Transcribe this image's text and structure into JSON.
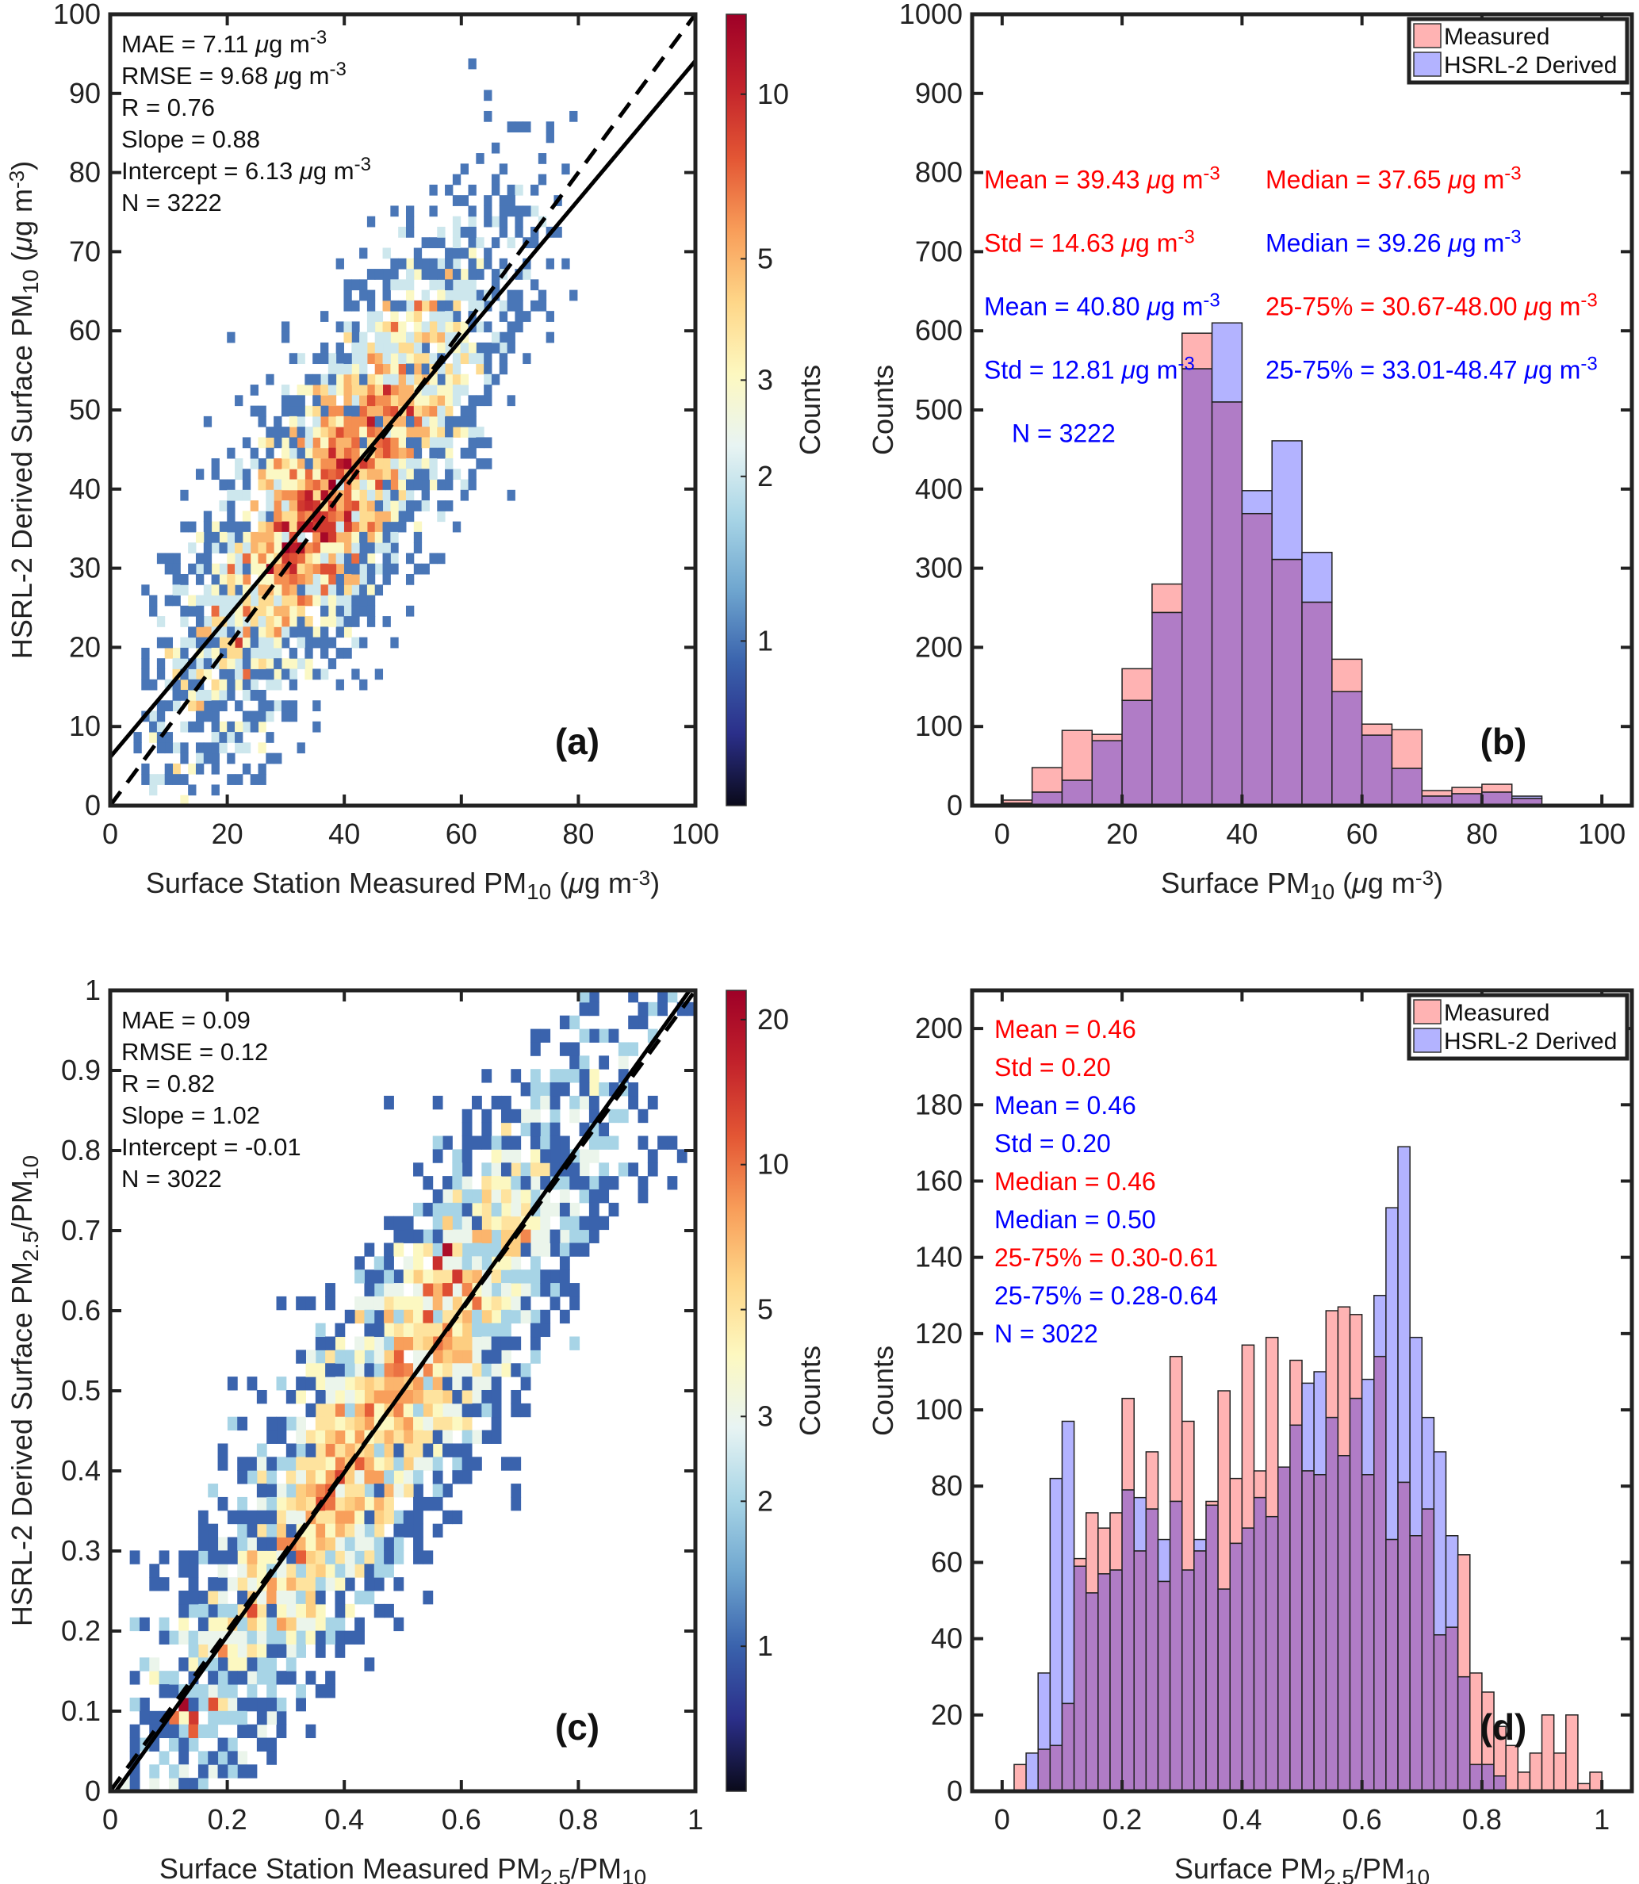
{
  "figure": {
    "panels": [
      "a",
      "b",
      "c",
      "d"
    ]
  },
  "chart_data": [
    {
      "id": "a",
      "type": "heatmap",
      "panel_letter": "(a)",
      "xlabel": {
        "main": "Surface Station Measured PM",
        "sub": "10",
        "unit_pre": " (",
        "mu": "μ",
        "unit": "g m",
        "sup": "-3",
        "close": ")"
      },
      "ylabel": {
        "main": "HSRL-2 Derived Surface PM",
        "sub": "10",
        "unit_pre": " (",
        "mu": "μ",
        "unit": "g m",
        "sup": "-3",
        "close": ")"
      },
      "xlim": [
        0,
        100
      ],
      "ylim": [
        0,
        100
      ],
      "xticks": [
        0,
        20,
        40,
        60,
        80,
        100
      ],
      "yticks": [
        0,
        10,
        20,
        30,
        40,
        50,
        60,
        70,
        80,
        90,
        100
      ],
      "xtick_labels": [
        "0",
        "20",
        "40",
        "60",
        "80",
        "100"
      ],
      "ytick_labels": [
        "0",
        "10",
        "20",
        "30",
        "40",
        "50",
        "60",
        "70",
        "80",
        "90",
        "100"
      ],
      "bin_width": 1.33,
      "stats": [
        {
          "label": "MAE = 7.11 ",
          "mu": "μ",
          "unit": "g m",
          "sup": "-3"
        },
        {
          "label": "RMSE = 9.68 ",
          "mu": "μ",
          "unit": "g m",
          "sup": "-3"
        },
        {
          "label": "R = 0.76"
        },
        {
          "label": "Slope = 0.88"
        },
        {
          "label": "Intercept = 6.13 ",
          "mu": "μ",
          "unit": "g m",
          "sup": "-3"
        },
        {
          "label": "N = 3222"
        }
      ],
      "fit_line": {
        "slope": 0.88,
        "intercept": 6.13,
        "style": "solid"
      },
      "one_to_one_line": {
        "slope": 1,
        "intercept": 0,
        "style": "dashed"
      },
      "distribution": {
        "n": 3222,
        "x_center": 38,
        "x_spread": 14.5,
        "slope": 0.88,
        "intercept": 6.13,
        "residual_spread": 9.5,
        "x_min": 5,
        "x_max": 80
      },
      "colorbar": {
        "label": "Counts",
        "scale": "log",
        "range": [
          0.5,
          14
        ],
        "ticks": [
          1,
          2,
          3,
          5,
          10
        ],
        "tick_labels": [
          "1",
          "2",
          "3",
          "5",
          "10"
        ],
        "colormap": [
          "#0a0a1a",
          "#2b2f8a",
          "#3a63ad",
          "#6fa6cf",
          "#a8d5e6",
          "#e8f4f3",
          "#fdf8c0",
          "#fed688",
          "#f89d59",
          "#e35634",
          "#c2222b",
          "#9e0027"
        ]
      },
      "dense_cells": [
        {
          "x": 33,
          "y": 33,
          "count": 12
        },
        {
          "x": 34.5,
          "y": 35,
          "count": 11
        },
        {
          "x": 36,
          "y": 33.5,
          "count": 13
        },
        {
          "x": 32,
          "y": 35.5,
          "count": 10
        },
        {
          "x": 37,
          "y": 36,
          "count": 9
        },
        {
          "x": 35,
          "y": 37.5,
          "count": 9
        },
        {
          "x": 38,
          "y": 34,
          "count": 8
        },
        {
          "x": 31,
          "y": 34,
          "count": 8
        },
        {
          "x": 34,
          "y": 39,
          "count": 7
        },
        {
          "x": 40,
          "y": 38,
          "count": 7
        },
        {
          "x": 45,
          "y": 48,
          "count": 8
        },
        {
          "x": 47,
          "y": 50,
          "count": 7
        },
        {
          "x": 42,
          "y": 44,
          "count": 6
        },
        {
          "x": 49,
          "y": 46,
          "count": 6
        },
        {
          "x": 30,
          "y": 31,
          "count": 7
        },
        {
          "x": 36,
          "y": 30.5,
          "count": 8
        }
      ]
    },
    {
      "id": "b",
      "type": "bar",
      "panel_letter": "(b)",
      "xlabel": {
        "main": "Surface PM",
        "sub": "10",
        "unit_pre": " (",
        "mu": "μ",
        "unit": "g m",
        "sup": "-3",
        "close": ")"
      },
      "ylabel": "Counts",
      "xlim": [
        -5,
        105
      ],
      "ylim": [
        0,
        1000
      ],
      "xticks": [
        0,
        20,
        40,
        60,
        80,
        100
      ],
      "yticks": [
        0,
        100,
        200,
        300,
        400,
        500,
        600,
        700,
        800,
        900,
        1000
      ],
      "xtick_labels": [
        "0",
        "20",
        "40",
        "60",
        "80",
        "100"
      ],
      "ytick_labels": [
        "0",
        "100",
        "200",
        "300",
        "400",
        "500",
        "600",
        "700",
        "800",
        "900",
        "1000"
      ],
      "bin_edges_start": 0,
      "bin_width": 5,
      "series": [
        {
          "name": "Measured",
          "color": "#ff7f7f",
          "values": [
            7,
            48,
            95,
            90,
            173,
            280,
            597,
            510,
            369,
            311,
            257,
            185,
            103,
            96,
            19,
            23,
            27,
            9,
            1
          ]
        },
        {
          "name": "HSRL-2 Derived",
          "color": "#7f7fff",
          "values": [
            3,
            17,
            32,
            82,
            133,
            244,
            552,
            610,
            398,
            461,
            320,
            144,
            89,
            47,
            12,
            15,
            17,
            12,
            0
          ]
        }
      ],
      "overlap_color": "#b07cc6",
      "legend": {
        "position": "top-right",
        "entries": [
          "Measured",
          "HSRL-2 Derived"
        ]
      },
      "annotations": [
        {
          "text": "Mean = 39.43 ",
          "mu": "μ",
          "unit": "g m",
          "sup": "-3",
          "color": "#ff0000",
          "col": 0,
          "row": 0
        },
        {
          "text": "Std = 14.63 ",
          "mu": "μ",
          "unit": "g m",
          "sup": "-3",
          "color": "#ff0000",
          "col": 0,
          "row": 1
        },
        {
          "text": "Mean = 40.80 ",
          "mu": "μ",
          "unit": "g m",
          "sup": "-3",
          "color": "#0000ff",
          "col": 0,
          "row": 2
        },
        {
          "text": "Std = 12.81 ",
          "mu": "μ",
          "unit": "g m",
          "sup": "-3",
          "color": "#0000ff",
          "col": 0,
          "row": 3
        },
        {
          "text": "N = 3222",
          "color": "#0000ff",
          "col": 0,
          "row": 4
        },
        {
          "text": "Median = 37.65 ",
          "mu": "μ",
          "unit": "g m",
          "sup": "-3",
          "color": "#ff0000",
          "col": 1,
          "row": 0
        },
        {
          "text": "Median = 39.26 ",
          "mu": "μ",
          "unit": "g m",
          "sup": "-3",
          "color": "#0000ff",
          "col": 1,
          "row": 1
        },
        {
          "text": "25-75% = 30.67-48.00 ",
          "mu": "μ",
          "unit": "g m",
          "sup": "-3",
          "color": "#ff0000",
          "col": 1,
          "row": 2
        },
        {
          "text": "25-75% = 33.01-48.47 ",
          "mu": "μ",
          "unit": "g m",
          "sup": "-3",
          "color": "#0000ff",
          "col": 1,
          "row": 3
        }
      ]
    },
    {
      "id": "c",
      "type": "heatmap",
      "panel_letter": "(c)",
      "xlabel": {
        "main": "Surface Station Measured PM",
        "sub": "2.5",
        "mid": "/PM",
        "sub2": "10"
      },
      "ylabel": {
        "main": "HSRL-2 Derived Surface PM",
        "sub": "2.5",
        "mid": "/PM",
        "sub2": "10"
      },
      "xlim": [
        0,
        1
      ],
      "ylim": [
        0,
        1
      ],
      "xticks": [
        0,
        0.2,
        0.4,
        0.6,
        0.8,
        1
      ],
      "yticks": [
        0,
        0.1,
        0.2,
        0.3,
        0.4,
        0.5,
        0.6,
        0.7,
        0.8,
        0.9,
        1
      ],
      "xtick_labels": [
        "0",
        "0.2",
        "0.4",
        "0.6",
        "0.8",
        "1"
      ],
      "ytick_labels": [
        "0",
        "0.1",
        "0.2",
        "0.3",
        "0.4",
        "0.5",
        "0.6",
        "0.7",
        "0.8",
        "0.9",
        "1"
      ],
      "bin_width": 0.0167,
      "stats": [
        {
          "label": "MAE = 0.09"
        },
        {
          "label": "RMSE = 0.12"
        },
        {
          "label": "R = 0.82"
        },
        {
          "label": "Slope = 1.02"
        },
        {
          "label": "Intercept = -0.01"
        },
        {
          "label": "N = 3022"
        }
      ],
      "fit_line": {
        "slope": 1.02,
        "intercept": -0.01,
        "style": "solid"
      },
      "one_to_one_line": {
        "slope": 1,
        "intercept": 0,
        "style": "dashed"
      },
      "distribution": {
        "n": 3022,
        "x_center": 0.46,
        "x_spread": 0.2,
        "slope": 1.02,
        "intercept": -0.01,
        "residual_spread": 0.1,
        "x_min": 0.02,
        "x_max": 1.0
      },
      "colorbar": {
        "label": "Counts",
        "scale": "log",
        "range": [
          0.5,
          23
        ],
        "ticks": [
          1,
          2,
          3,
          5,
          10,
          20
        ],
        "tick_labels": [
          "1",
          "2",
          "3",
          "5",
          "10",
          "20"
        ],
        "colormap": [
          "#0a0a1a",
          "#2b2f8a",
          "#3a63ad",
          "#6fa6cf",
          "#a8d5e6",
          "#e8f4f3",
          "#fdf8c0",
          "#fed688",
          "#f89d59",
          "#e35634",
          "#c2222b",
          "#9e0027"
        ]
      },
      "dense_cells": [
        {
          "x": 0.13,
          "y": 0.11,
          "count": 21
        },
        {
          "x": 0.15,
          "y": 0.1,
          "count": 14
        },
        {
          "x": 0.17,
          "y": 0.11,
          "count": 12
        },
        {
          "x": 0.11,
          "y": 0.09,
          "count": 10
        },
        {
          "x": 0.15,
          "y": 0.08,
          "count": 11
        },
        {
          "x": 0.58,
          "y": 0.67,
          "count": 20
        },
        {
          "x": 0.56,
          "y": 0.66,
          "count": 15
        },
        {
          "x": 0.6,
          "y": 0.65,
          "count": 14
        },
        {
          "x": 0.58,
          "y": 0.63,
          "count": 12
        },
        {
          "x": 0.54,
          "y": 0.62,
          "count": 11
        },
        {
          "x": 0.62,
          "y": 0.61,
          "count": 10
        },
        {
          "x": 0.44,
          "y": 0.48,
          "count": 11
        },
        {
          "x": 0.36,
          "y": 0.36,
          "count": 12
        },
        {
          "x": 0.33,
          "y": 0.3,
          "count": 11
        },
        {
          "x": 0.25,
          "y": 0.22,
          "count": 12
        },
        {
          "x": 0.49,
          "y": 0.52,
          "count": 10
        },
        {
          "x": 0.71,
          "y": 0.69,
          "count": 9
        },
        {
          "x": 0.4,
          "y": 0.45,
          "count": 8
        },
        {
          "x": 0.3,
          "y": 0.31,
          "count": 9
        },
        {
          "x": 0.27,
          "y": 0.26,
          "count": 8
        }
      ]
    },
    {
      "id": "d",
      "type": "bar",
      "panel_letter": "(d)",
      "xlabel": {
        "main": "Surface PM",
        "sub": "2.5",
        "mid": "/PM",
        "sub2": "10"
      },
      "ylabel": "Counts",
      "xlim": [
        -0.05,
        1.05
      ],
      "ylim": [
        0,
        210
      ],
      "xticks": [
        0,
        0.2,
        0.4,
        0.6,
        0.8,
        1
      ],
      "yticks": [
        0,
        20,
        40,
        60,
        80,
        100,
        120,
        140,
        160,
        180,
        200
      ],
      "xtick_labels": [
        "0",
        "0.2",
        "0.4",
        "0.6",
        "0.8",
        "1"
      ],
      "ytick_labels": [
        "0",
        "20",
        "40",
        "60",
        "80",
        "100",
        "120",
        "140",
        "160",
        "180",
        "200"
      ],
      "bin_edges_start": 0.02,
      "bin_width": 0.02,
      "series": [
        {
          "name": "Measured",
          "color": "#ff7f7f",
          "values": [
            7,
            0,
            11,
            12,
            23,
            61,
            73,
            69,
            73,
            103,
            63,
            89,
            55,
            114,
            97,
            63,
            76,
            105,
            82,
            117,
            84,
            119,
            85,
            113,
            84,
            83,
            126,
            127,
            125,
            83,
            114,
            66,
            81,
            67,
            74,
            41,
            43,
            62,
            31,
            26,
            17,
            12,
            5,
            10,
            20,
            10,
            20,
            2,
            5
          ]
        },
        {
          "name": "HSRL-2 Derived",
          "color": "#7f7fff",
          "values": [
            0,
            10,
            31,
            82,
            97,
            59,
            52,
            57,
            58,
            79,
            77,
            74,
            66,
            76,
            58,
            66,
            75,
            53,
            65,
            69,
            77,
            72,
            85,
            96,
            107,
            110,
            98,
            88,
            103,
            108,
            130,
            153,
            169,
            119,
            98,
            89,
            67,
            30,
            7,
            7,
            4,
            0,
            0,
            0,
            0,
            0,
            0,
            0,
            0
          ]
        }
      ],
      "overlap_color": "#b07cc6",
      "legend": {
        "position": "top-right",
        "entries": [
          "Measured",
          "HSRL-2 Derived"
        ]
      },
      "annotations": [
        {
          "text": "Mean = 0.46",
          "color": "#ff0000",
          "row": 0
        },
        {
          "text": "Std = 0.20",
          "color": "#ff0000",
          "row": 1
        },
        {
          "text": "Mean = 0.46",
          "color": "#0000ff",
          "row": 2
        },
        {
          "text": "Std = 0.20",
          "color": "#0000ff",
          "row": 3
        },
        {
          "text": "Median = 0.46",
          "color": "#ff0000",
          "row": 4
        },
        {
          "text": "Median = 0.50",
          "color": "#0000ff",
          "row": 5
        },
        {
          "text": "25-75% = 0.30-0.61",
          "color": "#ff0000",
          "row": 6
        },
        {
          "text": "25-75% = 0.28-0.64",
          "color": "#0000ff",
          "row": 7
        },
        {
          "text": "N = 3022",
          "color": "#0000ff",
          "row": 8
        }
      ]
    }
  ]
}
